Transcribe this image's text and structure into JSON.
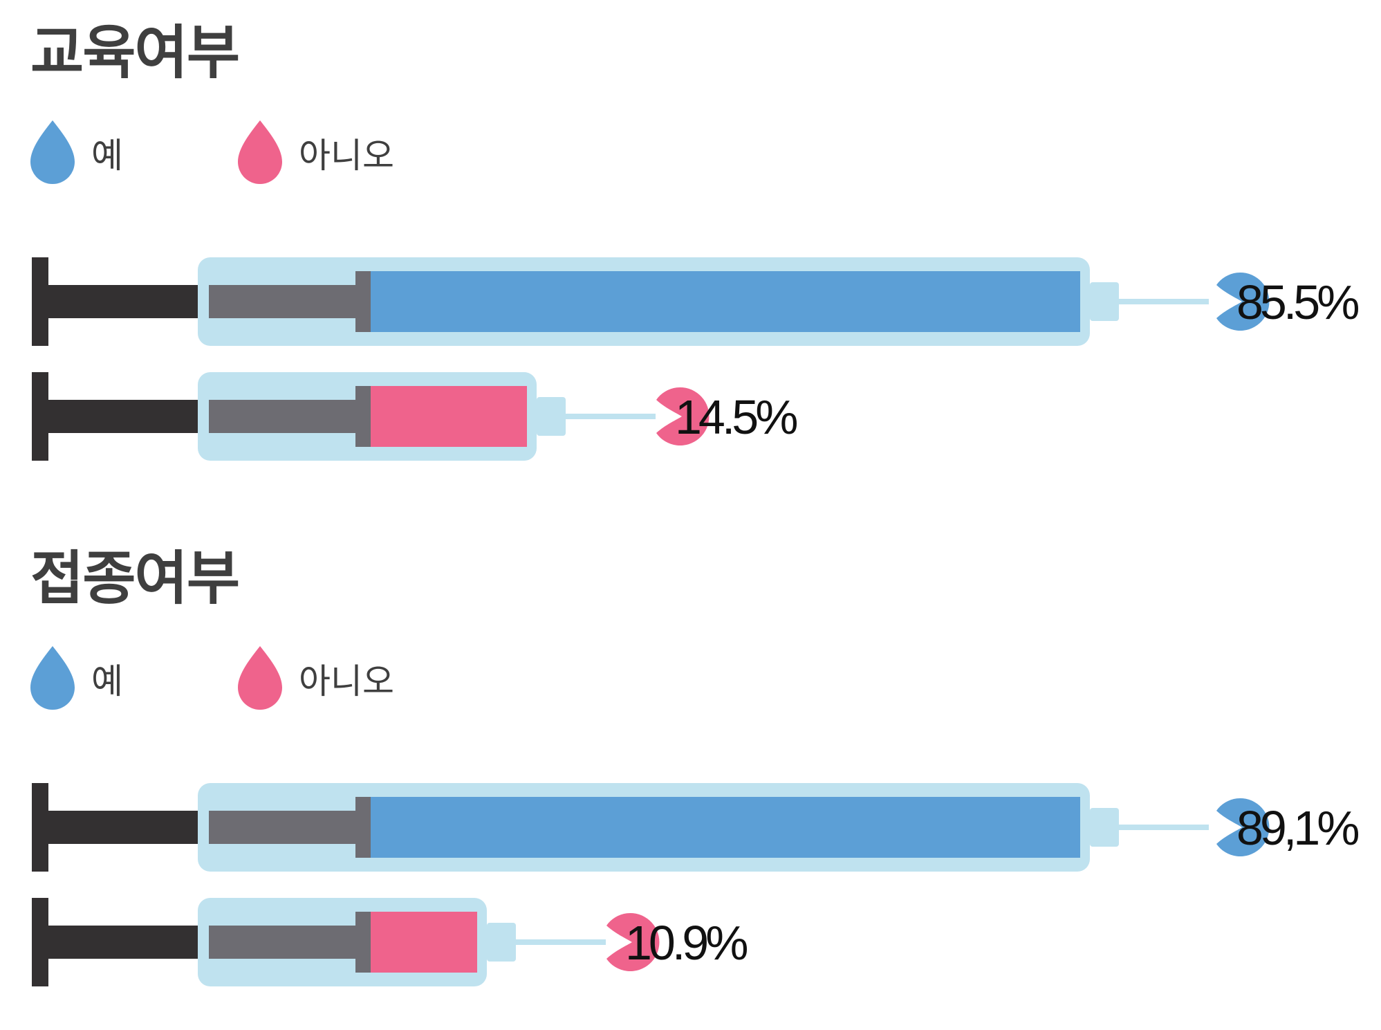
{
  "colors": {
    "yes": "#5c9fd6",
    "no": "#ef638c",
    "barrel": "#bfe2ef",
    "plunger": "#333031",
    "stopper": "#6d6c72",
    "text": "#3f3f3f"
  },
  "chart_data": [
    {
      "type": "bar",
      "title": "교육여부",
      "legend": [
        "예",
        "아니오"
      ],
      "categories": [
        "예",
        "아니오"
      ],
      "values": [
        85.5,
        14.5
      ],
      "labels": [
        "85.5%",
        "14.5%"
      ],
      "xlim": [
        0,
        100
      ]
    },
    {
      "type": "bar",
      "title": "접종여부",
      "legend": [
        "예",
        "아니오"
      ],
      "categories": [
        "예",
        "아니오"
      ],
      "values": [
        89.1,
        10.9
      ],
      "labels": [
        "89,1%",
        "10.9%"
      ],
      "xlim": [
        0,
        100
      ]
    }
  ]
}
